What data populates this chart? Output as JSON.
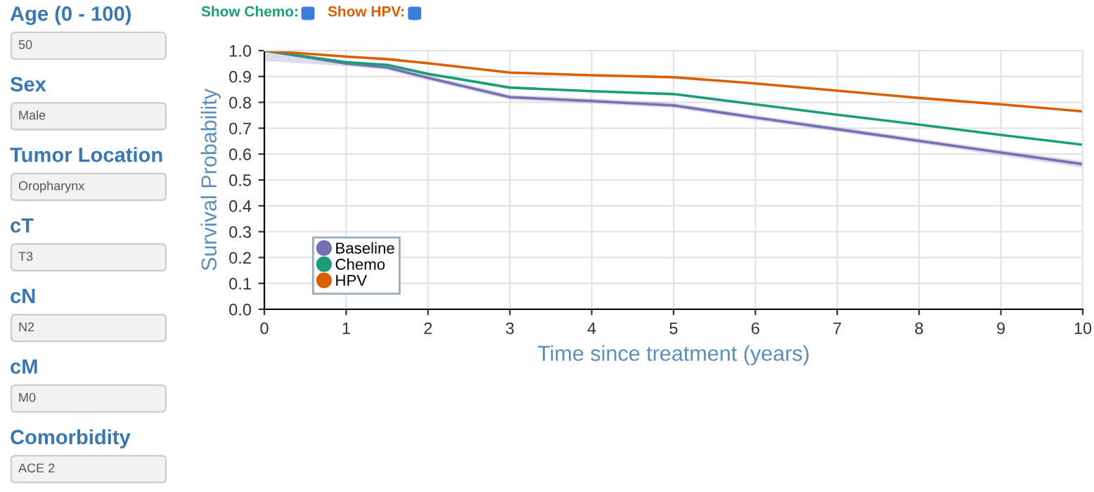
{
  "chart_data": [
    {
      "type": "other",
      "annotations": [
        "Age (0 - 100)",
        "50",
        "Sex",
        "Male",
        "Tumor Location",
        "Oropharynx",
        "cT",
        "T3",
        "cN",
        "N2",
        "cM",
        "M0",
        "Comorbidity",
        "ACE 2"
      ]
    },
    {
      "type": "line",
      "xlabel": "Time since treatment (years)",
      "ylabel": "Survival Probability",
      "annotations": [
        "Show Chemo:",
        "Show HPV:"
      ],
      "x": [
        0,
        1,
        1.5,
        2,
        3,
        4,
        5,
        6,
        7,
        8,
        9,
        10
      ],
      "series": [
        {
          "name": "Baseline",
          "color": "#7570b3",
          "values": [
            1.0,
            0.95,
            0.935,
            0.895,
            0.82,
            0.805,
            0.788,
            0.741,
            0.696,
            0.651,
            0.606,
            0.561
          ],
          "lower": [
            0.96,
            0.94,
            0.925,
            0.885,
            0.81,
            0.795,
            0.778,
            0.731,
            0.686,
            0.641,
            0.594,
            0.547
          ],
          "upper": [
            1.0,
            0.96,
            0.945,
            0.905,
            0.83,
            0.815,
            0.798,
            0.751,
            0.706,
            0.661,
            0.616,
            0.573
          ]
        },
        {
          "name": "Chemo",
          "color": "#1b9e77",
          "values": [
            1.0,
            0.955,
            0.945,
            0.91,
            0.857,
            0.843,
            0.832,
            0.792,
            0.752,
            0.714,
            0.674,
            0.636
          ]
        },
        {
          "name": "HPV",
          "color": "#d95f02",
          "values": [
            1.0,
            0.977,
            0.967,
            0.951,
            0.915,
            0.905,
            0.897,
            0.873,
            0.845,
            0.817,
            0.792,
            0.765
          ]
        }
      ],
      "xlim": [
        0,
        10
      ],
      "ylim": [
        0,
        1.0
      ],
      "xticks": [
        0,
        1,
        2,
        3,
        4,
        5,
        6,
        7,
        8,
        9,
        10
      ],
      "yticks": [
        {
          "value": 0,
          "label": "0.0"
        },
        0.1,
        0.2,
        0.3,
        0.4,
        0.5,
        0.6,
        0.7,
        0.8,
        0.9,
        {
          "value": 1.0,
          "label": "1.0"
        }
      ],
      "grid": true,
      "legend": "bottom left",
      "marker": "none",
      "line_style": "solid"
    }
  ]
}
